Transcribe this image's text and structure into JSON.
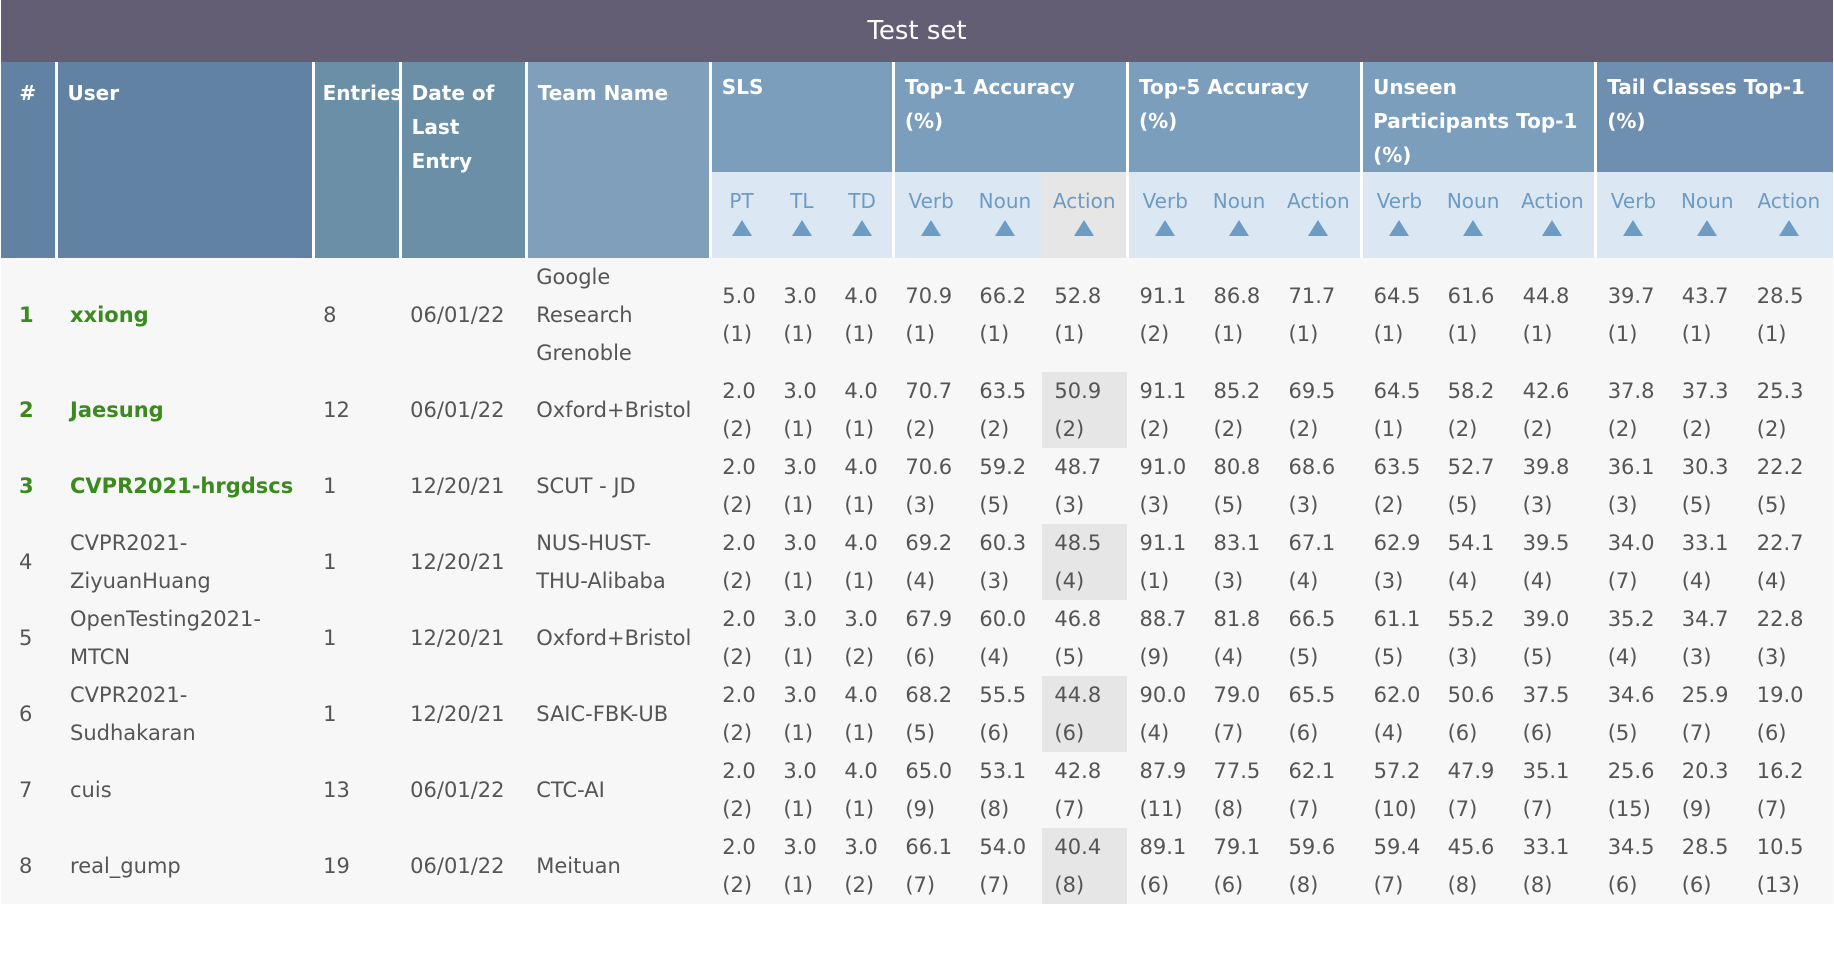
{
  "title": "Test set",
  "columns": {
    "num": "#",
    "user": "User",
    "entries": "Entries",
    "date": "Date of Last Entry",
    "team": "Team Name"
  },
  "groups": {
    "sls": "SLS",
    "top1": "Top-1 Accuracy (%)",
    "top5": "Top-5 Accuracy (%)",
    "unseen": "Unseen Participants Top-1 (%)",
    "tail": "Tail Classes Top-1 (%)"
  },
  "subcolumns": [
    "PT",
    "TL",
    "TD",
    "Verb",
    "Noun",
    "Action",
    "Verb",
    "Noun",
    "Action",
    "Verb",
    "Noun",
    "Action",
    "Verb",
    "Noun",
    "Action"
  ],
  "rows": [
    {
      "num": "1",
      "user": "xxiong",
      "entries": "8",
      "date": "06/01/22",
      "team": "Google Research Grenoble",
      "scores": [
        [
          "5.0",
          "(1)"
        ],
        [
          "3.0",
          "(1)"
        ],
        [
          "4.0",
          "(1)"
        ],
        [
          "70.9",
          "(1)"
        ],
        [
          "66.2",
          "(1)"
        ],
        [
          "52.8",
          "(1)"
        ],
        [
          "91.1",
          "(2)"
        ],
        [
          "86.8",
          "(1)"
        ],
        [
          "71.7",
          "(1)"
        ],
        [
          "64.5",
          "(1)"
        ],
        [
          "61.6",
          "(1)"
        ],
        [
          "44.8",
          "(1)"
        ],
        [
          "39.7",
          "(1)"
        ],
        [
          "43.7",
          "(1)"
        ],
        [
          "28.5",
          "(1)"
        ]
      ]
    },
    {
      "num": "2",
      "user": "Jaesung",
      "entries": "12",
      "date": "06/01/22",
      "team": "Oxford+Bristol",
      "scores": [
        [
          "2.0",
          "(2)"
        ],
        [
          "3.0",
          "(1)"
        ],
        [
          "4.0",
          "(1)"
        ],
        [
          "70.7",
          "(2)"
        ],
        [
          "63.5",
          "(2)"
        ],
        [
          "50.9",
          "(2)"
        ],
        [
          "91.1",
          "(2)"
        ],
        [
          "85.2",
          "(2)"
        ],
        [
          "69.5",
          "(2)"
        ],
        [
          "64.5",
          "(1)"
        ],
        [
          "58.2",
          "(2)"
        ],
        [
          "42.6",
          "(2)"
        ],
        [
          "37.8",
          "(2)"
        ],
        [
          "37.3",
          "(2)"
        ],
        [
          "25.3",
          "(2)"
        ]
      ]
    },
    {
      "num": "3",
      "user": "CVPR2021-hrgdscs",
      "entries": "1",
      "date": "12/20/21",
      "team": "SCUT - JD",
      "scores": [
        [
          "2.0",
          "(2)"
        ],
        [
          "3.0",
          "(1)"
        ],
        [
          "4.0",
          "(1)"
        ],
        [
          "70.6",
          "(3)"
        ],
        [
          "59.2",
          "(5)"
        ],
        [
          "48.7",
          "(3)"
        ],
        [
          "91.0",
          "(3)"
        ],
        [
          "80.8",
          "(5)"
        ],
        [
          "68.6",
          "(3)"
        ],
        [
          "63.5",
          "(2)"
        ],
        [
          "52.7",
          "(5)"
        ],
        [
          "39.8",
          "(3)"
        ],
        [
          "36.1",
          "(3)"
        ],
        [
          "30.3",
          "(5)"
        ],
        [
          "22.2",
          "(5)"
        ]
      ]
    },
    {
      "num": "4",
      "user": "CVPR2021-ZiyuanHuang",
      "entries": "1",
      "date": "12/20/21",
      "team": "NUS-HUST-THU-Alibaba",
      "scores": [
        [
          "2.0",
          "(2)"
        ],
        [
          "3.0",
          "(1)"
        ],
        [
          "4.0",
          "(1)"
        ],
        [
          "69.2",
          "(4)"
        ],
        [
          "60.3",
          "(3)"
        ],
        [
          "48.5",
          "(4)"
        ],
        [
          "91.1",
          "(1)"
        ],
        [
          "83.1",
          "(3)"
        ],
        [
          "67.1",
          "(4)"
        ],
        [
          "62.9",
          "(3)"
        ],
        [
          "54.1",
          "(4)"
        ],
        [
          "39.5",
          "(4)"
        ],
        [
          "34.0",
          "(7)"
        ],
        [
          "33.1",
          "(4)"
        ],
        [
          "22.7",
          "(4)"
        ]
      ]
    },
    {
      "num": "5",
      "user": "OpenTesting2021-MTCN",
      "entries": "1",
      "date": "12/20/21",
      "team": "Oxford+Bristol",
      "scores": [
        [
          "2.0",
          "(2)"
        ],
        [
          "3.0",
          "(1)"
        ],
        [
          "3.0",
          "(2)"
        ],
        [
          "67.9",
          "(6)"
        ],
        [
          "60.0",
          "(4)"
        ],
        [
          "46.8",
          "(5)"
        ],
        [
          "88.7",
          "(9)"
        ],
        [
          "81.8",
          "(4)"
        ],
        [
          "66.5",
          "(5)"
        ],
        [
          "61.1",
          "(5)"
        ],
        [
          "55.2",
          "(3)"
        ],
        [
          "39.0",
          "(5)"
        ],
        [
          "35.2",
          "(4)"
        ],
        [
          "34.7",
          "(3)"
        ],
        [
          "22.8",
          "(3)"
        ]
      ]
    },
    {
      "num": "6",
      "user": "CVPR2021-Sudhakaran",
      "entries": "1",
      "date": "12/20/21",
      "team": "SAIC-FBK-UB",
      "scores": [
        [
          "2.0",
          "(2)"
        ],
        [
          "3.0",
          "(1)"
        ],
        [
          "4.0",
          "(1)"
        ],
        [
          "68.2",
          "(5)"
        ],
        [
          "55.5",
          "(6)"
        ],
        [
          "44.8",
          "(6)"
        ],
        [
          "90.0",
          "(4)"
        ],
        [
          "79.0",
          "(7)"
        ],
        [
          "65.5",
          "(6)"
        ],
        [
          "62.0",
          "(4)"
        ],
        [
          "50.6",
          "(6)"
        ],
        [
          "37.5",
          "(6)"
        ],
        [
          "34.6",
          "(5)"
        ],
        [
          "25.9",
          "(7)"
        ],
        [
          "19.0",
          "(6)"
        ]
      ]
    },
    {
      "num": "7",
      "user": "cuis",
      "entries": "13",
      "date": "06/01/22",
      "team": "CTC-AI",
      "scores": [
        [
          "2.0",
          "(2)"
        ],
        [
          "3.0",
          "(1)"
        ],
        [
          "4.0",
          "(1)"
        ],
        [
          "65.0",
          "(9)"
        ],
        [
          "53.1",
          "(8)"
        ],
        [
          "42.8",
          "(7)"
        ],
        [
          "87.9",
          "(11)"
        ],
        [
          "77.5",
          "(8)"
        ],
        [
          "62.1",
          "(7)"
        ],
        [
          "57.2",
          "(10)"
        ],
        [
          "47.9",
          "(7)"
        ],
        [
          "35.1",
          "(7)"
        ],
        [
          "25.6",
          "(15)"
        ],
        [
          "20.3",
          "(9)"
        ],
        [
          "16.2",
          "(7)"
        ]
      ]
    },
    {
      "num": "8",
      "user": "real_gump",
      "entries": "19",
      "date": "06/01/22",
      "team": "Meituan",
      "scores": [
        [
          "2.0",
          "(2)"
        ],
        [
          "3.0",
          "(1)"
        ],
        [
          "3.0",
          "(2)"
        ],
        [
          "66.1",
          "(7)"
        ],
        [
          "54.0",
          "(7)"
        ],
        [
          "40.4",
          "(8)"
        ],
        [
          "89.1",
          "(6)"
        ],
        [
          "79.1",
          "(6)"
        ],
        [
          "59.6",
          "(8)"
        ],
        [
          "59.4",
          "(7)"
        ],
        [
          "45.6",
          "(8)"
        ],
        [
          "33.1",
          "(8)"
        ],
        [
          "34.5",
          "(6)"
        ],
        [
          "28.5",
          "(6)"
        ],
        [
          "10.5",
          "(13)"
        ]
      ]
    }
  ],
  "highlighted_users": [
    "1",
    "2",
    "3"
  ],
  "colors": {
    "title_bg": "#635e73",
    "header_bg": "#7b9ebd",
    "subheader_bg": "#dbe8f3",
    "accent_green": "#3a8a1e"
  }
}
